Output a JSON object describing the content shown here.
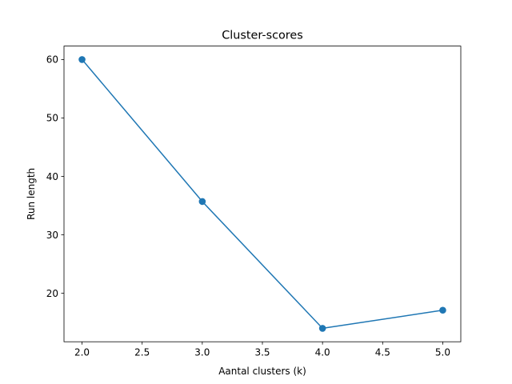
{
  "chart_data": {
    "type": "line",
    "title": "Cluster-scores",
    "xlabel": "Aantal clusters (k)",
    "ylabel": "Run length",
    "xlim": [
      1.85,
      5.15
    ],
    "ylim": [
      11.7,
      62.3
    ],
    "x_ticks": [
      2.0,
      2.5,
      3.0,
      3.5,
      4.0,
      4.5,
      5.0
    ],
    "x_tick_labels": [
      "2.0",
      "2.5",
      "3.0",
      "3.5",
      "4.0",
      "4.5",
      "5.0"
    ],
    "y_ticks": [
      20,
      30,
      40,
      50,
      60
    ],
    "y_tick_labels": [
      "20",
      "30",
      "40",
      "50",
      "60"
    ],
    "grid": false,
    "series": [
      {
        "x": [
          2,
          3,
          4,
          5
        ],
        "values": [
          60.0,
          35.7,
          14.0,
          17.1
        ],
        "color": "#1f77b4",
        "marker": "circle"
      }
    ]
  }
}
